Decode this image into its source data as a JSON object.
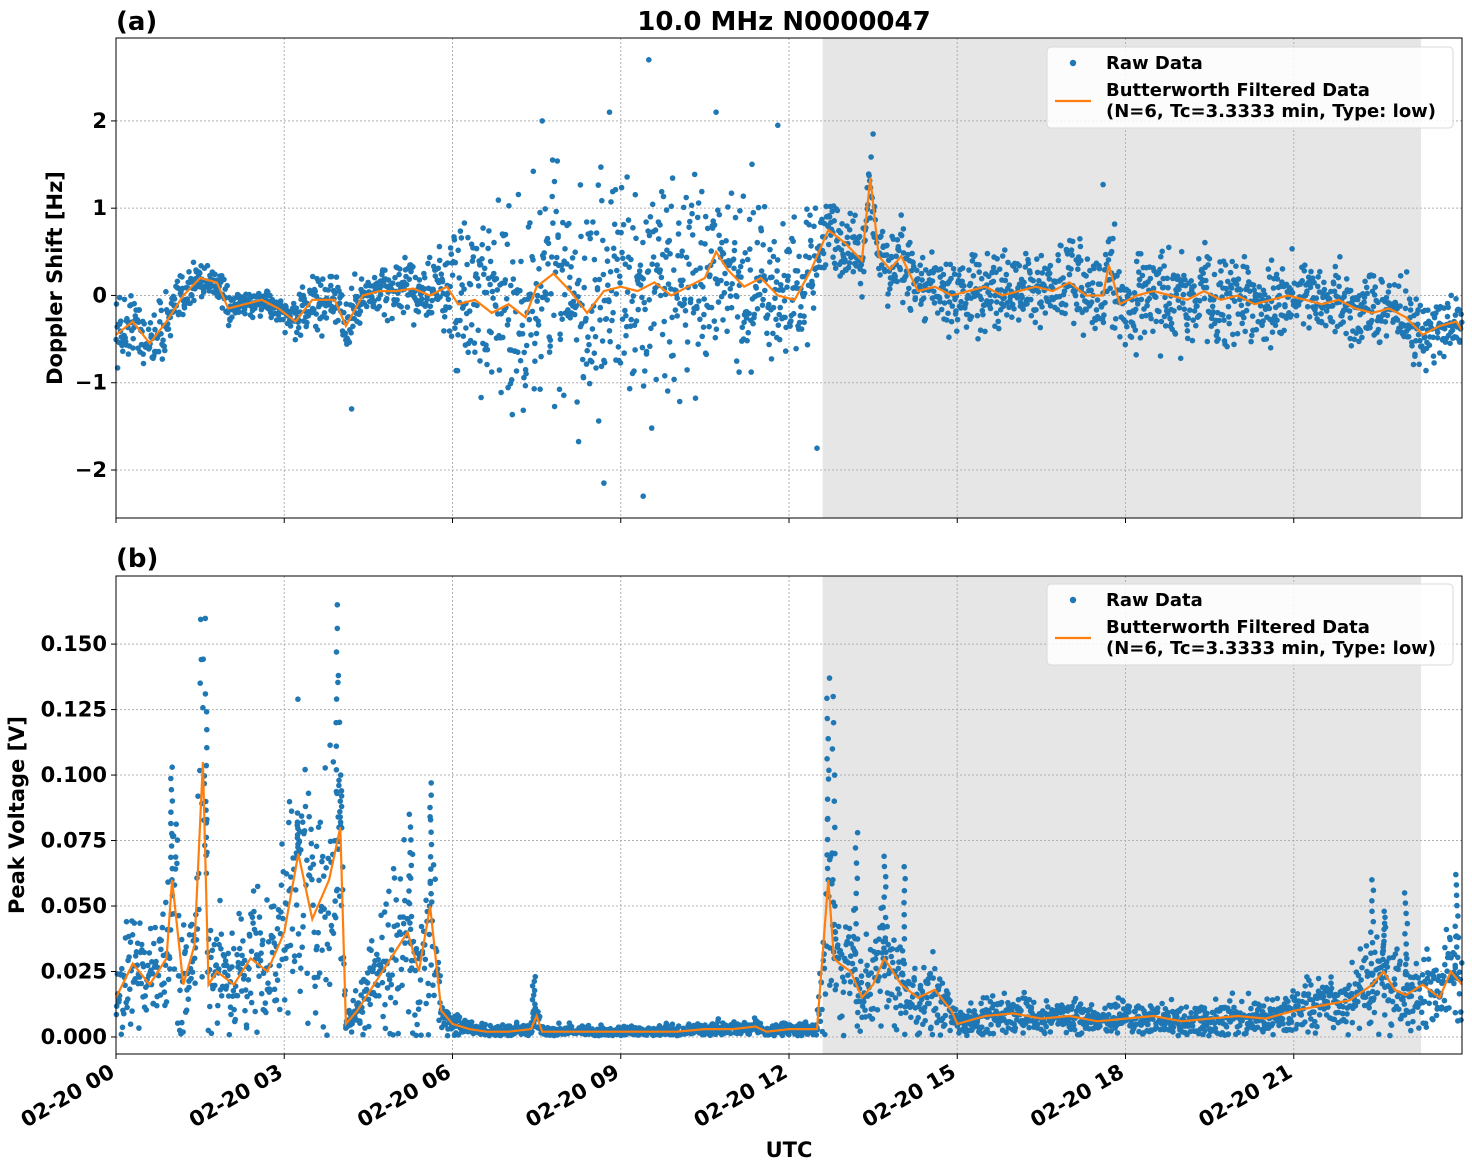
{
  "figure": {
    "title": "10.0 MHz N0000047",
    "xlabel": "UTC"
  },
  "colors": {
    "raw": "#1f77b4",
    "filtered": "#ff7f0e",
    "shade": "#e6e6e6",
    "grid": "#b0b0b0"
  },
  "chart_data": [
    {
      "type": "scatter",
      "panel_label": "(a)",
      "title": "10.0 MHz N0000047",
      "ylabel": "Doppler Shift [Hz]",
      "xlabel": "",
      "xlim_hours": [
        0,
        24
      ],
      "ylim": [
        -2.55,
        2.95
      ],
      "yticks": [
        -2,
        -1,
        0,
        1,
        2
      ],
      "ytick_labels": [
        "−2",
        "−1",
        "0",
        "1",
        "2"
      ],
      "xticks_hours": [
        0,
        3,
        6,
        9,
        12,
        15,
        18,
        21
      ],
      "xtick_labels": [],
      "grid": true,
      "shaded_interval_hours": [
        12.6,
        23.27
      ],
      "legend": {
        "position": "top-right",
        "raw_label": "Raw Data",
        "filtered_label_line1": "Butterworth Filtered Data",
        "filtered_label_line2": "(N=6, Tc=3.3333 min, Type: low)"
      },
      "series": [
        {
          "name": "Butterworth Filtered Data",
          "kind": "line",
          "x": [
            0,
            0.3,
            0.6,
            0.9,
            1.2,
            1.5,
            1.8,
            2.0,
            2.3,
            2.6,
            2.9,
            3.2,
            3.5,
            3.9,
            4.1,
            4.4,
            4.7,
            5.0,
            5.3,
            5.6,
            5.9,
            6.1,
            6.4,
            6.7,
            7.0,
            7.3,
            7.5,
            7.8,
            8.1,
            8.4,
            8.7,
            9.0,
            9.3,
            9.6,
            9.9,
            10.2,
            10.5,
            10.7,
            10.9,
            11.2,
            11.5,
            11.8,
            12.1,
            12.4,
            12.7,
            13.0,
            13.3,
            13.45,
            13.6,
            13.8,
            14.0,
            14.3,
            14.6,
            14.9,
            15.2,
            15.5,
            15.8,
            16.1,
            16.4,
            16.7,
            17.0,
            17.3,
            17.6,
            17.7,
            17.9,
            18.2,
            18.5,
            18.8,
            19.1,
            19.4,
            19.7,
            20.0,
            20.3,
            20.6,
            20.9,
            21.2,
            21.5,
            21.8,
            22.1,
            22.4,
            22.7,
            23.0,
            23.3,
            23.6,
            23.9,
            24.0
          ],
          "y": [
            -0.45,
            -0.3,
            -0.55,
            -0.3,
            0.0,
            0.2,
            0.15,
            -0.15,
            -0.1,
            -0.05,
            -0.15,
            -0.3,
            -0.05,
            -0.05,
            -0.35,
            0.0,
            0.05,
            0.05,
            0.08,
            0.0,
            0.1,
            -0.1,
            -0.05,
            -0.2,
            -0.1,
            -0.25,
            0.1,
            0.25,
            0.05,
            -0.2,
            0.05,
            0.1,
            0.05,
            0.15,
            0.0,
            0.1,
            0.2,
            0.5,
            0.3,
            0.1,
            0.2,
            0.0,
            -0.05,
            0.3,
            0.75,
            0.6,
            0.4,
            1.35,
            0.45,
            0.3,
            0.45,
            0.05,
            0.1,
            0.0,
            0.05,
            0.1,
            0.0,
            0.05,
            0.1,
            0.05,
            0.15,
            0.0,
            0.0,
            0.35,
            -0.1,
            0.0,
            0.05,
            0.0,
            -0.05,
            0.05,
            -0.05,
            0.0,
            -0.1,
            -0.05,
            0.0,
            -0.05,
            -0.1,
            -0.05,
            -0.15,
            -0.2,
            -0.15,
            -0.25,
            -0.45,
            -0.35,
            -0.3,
            -0.4
          ]
        },
        {
          "name": "Raw Data",
          "kind": "points",
          "spread_x": [
            0,
            1,
            2,
            3,
            4,
            4.5,
            5.5,
            6.0,
            7.0,
            7.5,
            8.5,
            9.5,
            10.5,
            11.5,
            12.5,
            12.6,
            13.5,
            14.5,
            15.5,
            16.5,
            18.0,
            19.5,
            21.0,
            22.5,
            24.0
          ],
          "spread_y": [
            0.35,
            0.3,
            0.15,
            0.15,
            0.35,
            0.25,
            0.3,
            0.7,
            0.9,
            1.1,
            1.05,
            1.0,
            0.9,
            0.8,
            0.7,
            0.35,
            0.35,
            0.35,
            0.4,
            0.4,
            0.45,
            0.45,
            0.4,
            0.35,
            0.35
          ],
          "outliers_x": [
            9.5,
            10.7,
            8.8,
            7.6,
            11.8,
            12.5,
            13.5,
            17.6,
            9.4,
            8.7,
            4.2
          ],
          "outliers_y": [
            2.7,
            2.1,
            2.1,
            2.0,
            1.95,
            -1.75,
            1.85,
            1.27,
            -2.3,
            -2.15,
            -1.3
          ]
        }
      ]
    },
    {
      "type": "scatter",
      "panel_label": "(b)",
      "title": "",
      "ylabel": "Peak Voltage [V]",
      "xlabel": "UTC",
      "xlim_hours": [
        0,
        24
      ],
      "ylim": [
        -0.0065,
        0.176
      ],
      "yticks": [
        0.0,
        0.025,
        0.05,
        0.075,
        0.1,
        0.125,
        0.15
      ],
      "ytick_labels": [
        "0.000",
        "0.025",
        "0.050",
        "0.075",
        "0.100",
        "0.125",
        "0.150"
      ],
      "xticks_hours": [
        0,
        3,
        6,
        9,
        12,
        15,
        18,
        21
      ],
      "xtick_labels": [
        "02-20 00",
        "02-20 03",
        "02-20 06",
        "02-20 09",
        "02-20 12",
        "02-20 15",
        "02-20 18",
        "02-20 21"
      ],
      "grid": true,
      "shaded_interval_hours": [
        12.6,
        23.27
      ],
      "legend": {
        "position": "top-right",
        "raw_label": "Raw Data",
        "filtered_label_line1": "Butterworth Filtered Data",
        "filtered_label_line2": "(N=6, Tc=3.3333 min, Type: low)"
      },
      "series": [
        {
          "name": "Butterworth Filtered Data",
          "kind": "line",
          "x": [
            0,
            0.3,
            0.6,
            0.9,
            1.0,
            1.2,
            1.4,
            1.55,
            1.65,
            1.8,
            2.1,
            2.4,
            2.7,
            3.0,
            3.25,
            3.5,
            3.8,
            4.0,
            4.1,
            4.3,
            4.6,
            4.9,
            5.2,
            5.4,
            5.6,
            5.8,
            6.0,
            6.3,
            6.6,
            7.0,
            7.4,
            7.5,
            7.6,
            8.0,
            9.0,
            9.5,
            10.0,
            10.5,
            11.0,
            11.4,
            11.6,
            12.0,
            12.5,
            12.7,
            12.8,
            12.9,
            13.1,
            13.3,
            13.5,
            13.7,
            14.0,
            14.3,
            14.6,
            14.9,
            15.0,
            15.5,
            16.0,
            16.5,
            17.0,
            17.5,
            18.0,
            18.5,
            19.0,
            19.5,
            20.0,
            20.5,
            21.0,
            21.5,
            22.0,
            22.4,
            22.6,
            22.8,
            23.0,
            23.3,
            23.6,
            23.8,
            24.0
          ],
          "y": [
            0.015,
            0.028,
            0.02,
            0.03,
            0.06,
            0.02,
            0.035,
            0.105,
            0.02,
            0.025,
            0.02,
            0.03,
            0.025,
            0.04,
            0.07,
            0.045,
            0.06,
            0.08,
            0.005,
            0.01,
            0.02,
            0.03,
            0.04,
            0.025,
            0.05,
            0.01,
            0.005,
            0.003,
            0.002,
            0.002,
            0.003,
            0.008,
            0.002,
            0.002,
            0.002,
            0.002,
            0.002,
            0.003,
            0.003,
            0.004,
            0.002,
            0.003,
            0.003,
            0.06,
            0.03,
            0.028,
            0.025,
            0.015,
            0.02,
            0.03,
            0.02,
            0.015,
            0.018,
            0.01,
            0.005,
            0.008,
            0.009,
            0.007,
            0.008,
            0.006,
            0.007,
            0.008,
            0.006,
            0.007,
            0.008,
            0.007,
            0.01,
            0.012,
            0.014,
            0.02,
            0.025,
            0.018,
            0.016,
            0.02,
            0.015,
            0.025,
            0.02
          ]
        },
        {
          "name": "Raw Data",
          "kind": "points",
          "peak_x": [
            1.0,
            1.6,
            3.25,
            3.95,
            4.0,
            5.25,
            5.6,
            7.45,
            12.7,
            12.8,
            13.2,
            13.7,
            14.05,
            22.4,
            22.6,
            23.0,
            23.9
          ],
          "peak_y": [
            0.103,
            0.131,
            0.082,
            0.165,
            0.1,
            0.085,
            0.097,
            0.023,
            0.137,
            0.13,
            0.078,
            0.069,
            0.065,
            0.06,
            0.048,
            0.055,
            0.062
          ]
        }
      ]
    }
  ]
}
